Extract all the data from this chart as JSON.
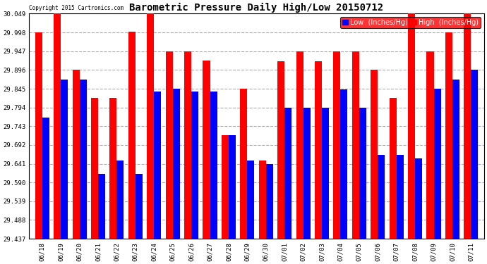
{
  "title": "Barometric Pressure Daily High/Low 20150712",
  "copyright": "Copyright 2015 Cartronics.com",
  "legend_low": "Low  (Inches/Hg)",
  "legend_high": "High  (Inches/Hg)",
  "dates": [
    "06/18",
    "06/19",
    "06/20",
    "06/21",
    "06/22",
    "06/23",
    "06/24",
    "06/25",
    "06/26",
    "06/27",
    "06/28",
    "06/29",
    "06/30",
    "07/01",
    "07/02",
    "07/03",
    "07/04",
    "07/05",
    "07/06",
    "07/07",
    "07/08",
    "07/09",
    "07/10",
    "07/11"
  ],
  "low_values": [
    29.767,
    29.869,
    29.869,
    29.614,
    29.649,
    29.614,
    29.838,
    29.845,
    29.838,
    29.838,
    29.718,
    29.649,
    29.641,
    29.793,
    29.793,
    29.793,
    29.844,
    29.793,
    29.665,
    29.665,
    29.655,
    29.845,
    29.87,
    29.896
  ],
  "high_values": [
    29.998,
    30.049,
    29.896,
    29.82,
    29.82,
    30.0,
    30.049,
    29.947,
    29.947,
    29.922,
    29.718,
    29.845,
    29.649,
    29.92,
    29.947,
    29.92,
    29.947,
    29.947,
    29.896,
    29.82,
    30.049,
    29.947,
    29.998,
    30.049
  ],
  "ylim_min": 29.437,
  "ylim_max": 30.049,
  "yticks": [
    29.437,
    29.488,
    29.539,
    29.59,
    29.641,
    29.692,
    29.743,
    29.794,
    29.845,
    29.896,
    29.947,
    29.998,
    30.049
  ],
  "bar_width": 0.38,
  "low_color": "#0000ff",
  "high_color": "#ff0000",
  "bg_color": "#ffffff",
  "grid_color": "#aaaaaa",
  "title_fontsize": 10,
  "tick_fontsize": 6.5,
  "legend_fontsize": 7
}
